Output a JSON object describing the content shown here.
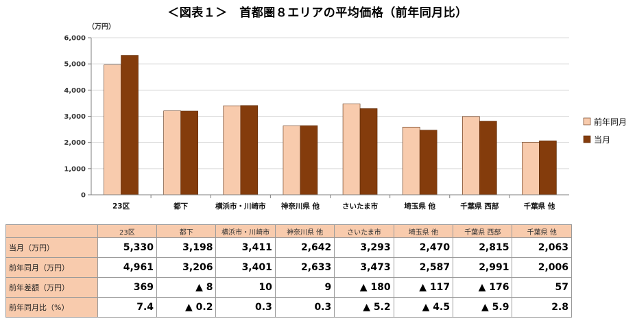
{
  "title": "＜図表１＞　首都圏８エリアの平均価格（前年同月比）",
  "chart_data": {
    "type": "bar",
    "unit_label": "（万円）",
    "categories": [
      "23区",
      "都下",
      "横浜市・川崎市",
      "神奈川県 他",
      "さいたま市",
      "埼玉県 他",
      "千葉県 西部",
      "千葉県 他"
    ],
    "series": [
      {
        "name": "前年同月",
        "color": "#f8cbad",
        "values": [
          4961,
          3206,
          3401,
          2633,
          3473,
          2587,
          2991,
          2006
        ]
      },
      {
        "name": "当月",
        "color": "#843c0c",
        "values": [
          5330,
          3198,
          3411,
          2642,
          3293,
          2470,
          2815,
          2063
        ]
      }
    ],
    "ylim": [
      0,
      6000
    ],
    "yticks": [
      "0",
      "1,000",
      "2,000",
      "3,000",
      "4,000",
      "5,000",
      "6,000"
    ],
    "grid": true,
    "legend_position": "right"
  },
  "table": {
    "headers": [
      "23区",
      "都下",
      "横浜市・川崎市",
      "神奈川県 他",
      "さいたま市",
      "埼玉県 他",
      "千葉県 西部",
      "千葉県 他"
    ],
    "rows": [
      {
        "label": "当月（万円）",
        "cells": [
          "5,330",
          "3,198",
          "3,411",
          "2,642",
          "3,293",
          "2,470",
          "2,815",
          "2,063"
        ]
      },
      {
        "label": "前年同月（万円）",
        "cells": [
          "4,961",
          "3,206",
          "3,401",
          "2,633",
          "3,473",
          "2,587",
          "2,991",
          "2,006"
        ]
      },
      {
        "label": "前年差額（万円）",
        "cells": [
          "369",
          "▲ 8",
          "10",
          "9",
          "▲ 180",
          "▲ 117",
          "▲ 176",
          "57"
        ]
      },
      {
        "label": "前年同月比（%）",
        "cells": [
          "7.4",
          "▲ 0.2",
          "0.3",
          "0.3",
          "▲ 5.2",
          "▲ 4.5",
          "▲ 5.9",
          "2.8"
        ]
      }
    ]
  }
}
